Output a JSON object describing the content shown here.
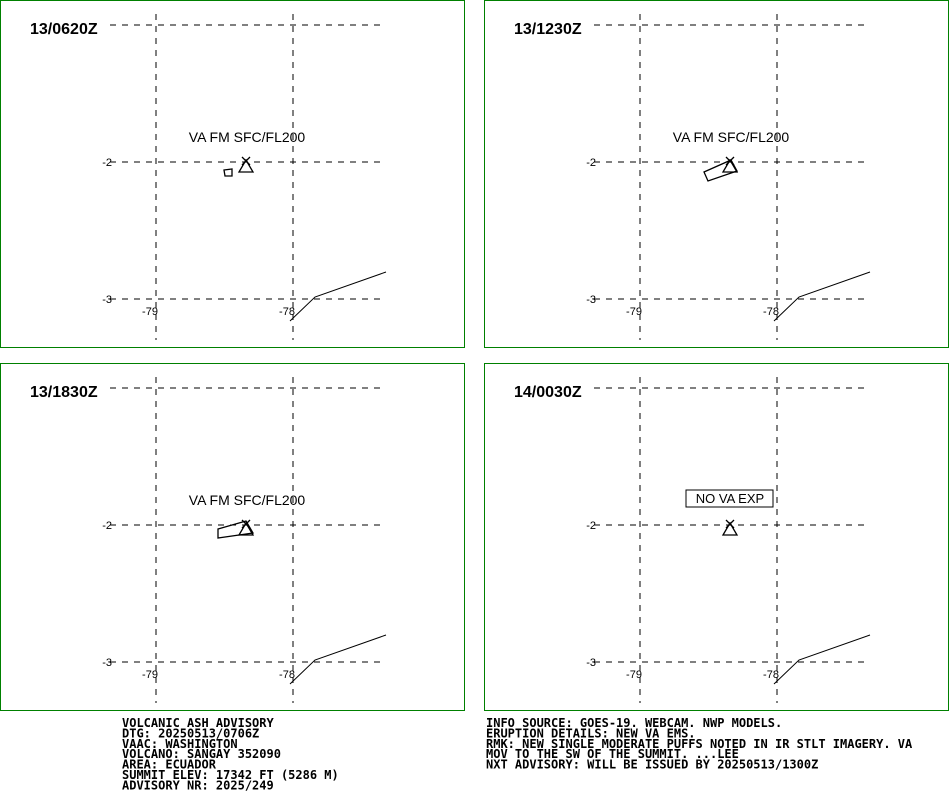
{
  "panels": [
    {
      "time": "13/0620Z",
      "label": "VA FM SFC/FL200"
    },
    {
      "time": "13/1230Z",
      "label": "VA FM SFC/FL200"
    },
    {
      "time": "13/1830Z",
      "label": "VA FM SFC/FL200"
    },
    {
      "time": "14/0030Z",
      "label": "NO VA EXP"
    }
  ],
  "map": {
    "lat_labels": [
      "-2",
      "-3"
    ],
    "lon_labels": [
      "-79",
      "-78"
    ]
  },
  "advisory_left": [
    "VOLCANIC ASH ADVISORY",
    "DTG: 20250513/0706Z",
    "VAAC: WASHINGTON",
    "VOLCANO: SANGAY 352090",
    "AREA: ECUADOR",
    "SUMMIT ELEV: 17342 FT (5286 M)",
    "ADVISORY NR: 2025/249"
  ],
  "advisory_right": [
    "INFO SOURCE: GOES-19. WEBCAM. NWP MODELS.",
    "ERUPTION DETAILS: NEW VA EMS.",
    "RMK: NEW SINGLE MODERATE PUFFS NOTED IN IR STLT IMAGERY. VA",
    "MOV TO THE SW OF THE SUMMIT. ...LEE",
    "NXT ADVISORY: WILL BE ISSUED BY 20250513/1300Z"
  ]
}
